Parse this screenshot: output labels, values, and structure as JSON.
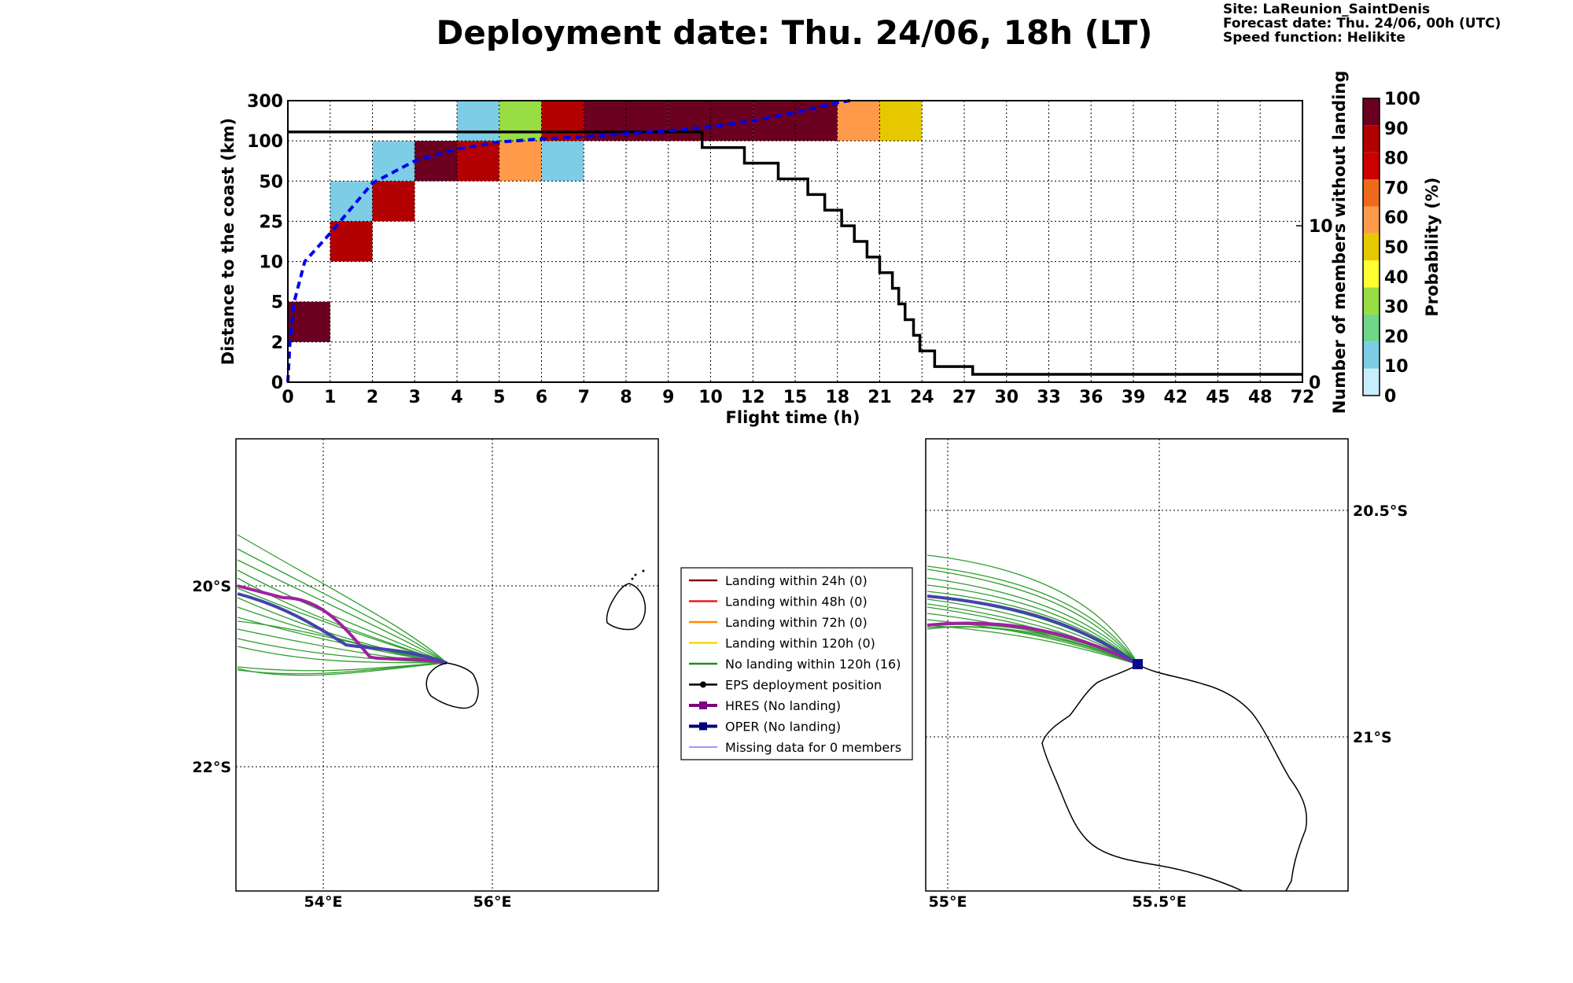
{
  "title": "Deployment date: Thu. 24/06, 18h (LT)",
  "info": {
    "site": "Site: LaReunion_SaintDenis",
    "forecast": "Forecast date: Thu. 24/06, 00h (UTC)",
    "speed": "Speed function: Helikite"
  },
  "chart_data": [
    {
      "type": "heatmap",
      "name": "distance-probability",
      "xlabel": "Flight time (h)",
      "ylabel": "Distance to the coast (km)",
      "y2label": "Number of members without landing",
      "x_ticks": [
        "0",
        "1",
        "2",
        "3",
        "4",
        "5",
        "6",
        "7",
        "8",
        "9",
        "10",
        "12",
        "15",
        "18",
        "21",
        "24",
        "27",
        "30",
        "33",
        "36",
        "39",
        "42",
        "45",
        "48",
        "72"
      ],
      "y_ticks": [
        "0",
        "2",
        "5",
        "10",
        "25",
        "50",
        "100",
        "300"
      ],
      "y2_ticks": [
        {
          "label": "0",
          "value": 0
        },
        {
          "label": "10",
          "value": 10
        }
      ],
      "y2_max": 18,
      "colorbar": {
        "label": "Probability (%)",
        "ticks": [
          "0",
          "10",
          "20",
          "30",
          "40",
          "50",
          "60",
          "70",
          "80",
          "90",
          "100"
        ],
        "colors": [
          "#c8eefc",
          "#7ecde6",
          "#6fd68a",
          "#99dd44",
          "#ffff33",
          "#e6c800",
          "#ff9a4a",
          "#ee6a1a",
          "#cc0000",
          "#b30000",
          "#6b0020"
        ]
      },
      "cells": [
        {
          "t": 0,
          "d": 1,
          "color": "#6b0020"
        },
        {
          "t": 1,
          "d": 3,
          "color": "#b30000"
        },
        {
          "t": 1,
          "d": 4,
          "color": "#7ecde6"
        },
        {
          "t": 2,
          "d": 4,
          "color": "#b30000"
        },
        {
          "t": 2,
          "d": 5,
          "color": "#7ecde6"
        },
        {
          "t": 3,
          "d": 5,
          "color": "#6b0020"
        },
        {
          "t": 4,
          "d": 5,
          "color": "#b30000"
        },
        {
          "t": 4,
          "d": 6,
          "color": "#7ecde6"
        },
        {
          "t": 5,
          "d": 5,
          "color": "#ff9a4a"
        },
        {
          "t": 5,
          "d": 6,
          "color": "#99dd44"
        },
        {
          "t": 6,
          "d": 5,
          "color": "#7ecde6"
        },
        {
          "t": 6,
          "d": 6,
          "color": "#b30000"
        },
        {
          "t": 7,
          "d": 6,
          "color": "#6b0020"
        },
        {
          "t": 8,
          "d": 6,
          "color": "#6b0020"
        },
        {
          "t": 9,
          "d": 6,
          "color": "#6b0020"
        },
        {
          "t": 10,
          "d": 6,
          "color": "#6b0020"
        },
        {
          "t": 11,
          "d": 6,
          "color": "#6b0020"
        },
        {
          "t": 12,
          "d": 6,
          "color": "#6b0020"
        },
        {
          "t": 13,
          "d": 6,
          "color": "#ff9a4a"
        },
        {
          "t": 14,
          "d": 6,
          "color": "#e6c800"
        }
      ],
      "members_without_landing": {
        "color": "#000000",
        "steps": [
          [
            0,
            16
          ],
          [
            9.8,
            15
          ],
          [
            10.8,
            14
          ],
          [
            11.6,
            13
          ],
          [
            12.3,
            12
          ],
          [
            12.7,
            11
          ],
          [
            13.1,
            10
          ],
          [
            13.4,
            9
          ],
          [
            13.7,
            8
          ],
          [
            14.0,
            7
          ],
          [
            14.3,
            6
          ],
          [
            14.45,
            5
          ],
          [
            14.6,
            4
          ],
          [
            14.8,
            3
          ],
          [
            14.95,
            2
          ],
          [
            15.3,
            1
          ],
          [
            16.2,
            0.5
          ],
          [
            17.4,
            0.5
          ],
          [
            24,
            0.5
          ]
        ]
      },
      "median_distance": {
        "color": "#0000ee",
        "points": [
          [
            0,
            0
          ],
          [
            0.05,
            1
          ],
          [
            0.15,
            2
          ],
          [
            0.4,
            3
          ],
          [
            1,
            3.7
          ],
          [
            2,
            4.95
          ],
          [
            3,
            5.5
          ],
          [
            4,
            5.8
          ],
          [
            5,
            5.97
          ],
          [
            6,
            6.05
          ],
          [
            7,
            6.1
          ],
          [
            8,
            6.18
          ],
          [
            9,
            6.25
          ],
          [
            10,
            6.35
          ],
          [
            11,
            6.5
          ],
          [
            12,
            6.7
          ],
          [
            13,
            6.95
          ],
          [
            13.3,
            7
          ]
        ]
      }
    },
    {
      "type": "map",
      "name": "trajectories-regional",
      "lon_ticks": [
        "54°E",
        "56°E"
      ],
      "lat_ticks": [
        "20°S",
        "22°S"
      ]
    },
    {
      "type": "map",
      "name": "trajectories-zoom",
      "lon_ticks": [
        "55°E",
        "55.5°E"
      ],
      "lat_ticks": [
        "20.5°S",
        "21°S"
      ]
    }
  ],
  "legend": [
    {
      "label": "Landing within 24h (0)",
      "color": "#7f1010",
      "style": "line"
    },
    {
      "label": "Landing within 48h (0)",
      "color": "#e81d1d",
      "style": "line"
    },
    {
      "label": "Landing within 72h (0)",
      "color": "#ff8c00",
      "style": "line"
    },
    {
      "label": "Landing within 120h (0)",
      "color": "#ffd700",
      "style": "line"
    },
    {
      "label": "No landing within 120h (16)",
      "color": "#228b22",
      "style": "line"
    },
    {
      "label": "EPS deployment position",
      "color": "#000000",
      "style": "dot"
    },
    {
      "label": "HRES (No landing)",
      "color": "#800080",
      "style": "square"
    },
    {
      "label": "OPER (No landing)",
      "color": "#000080",
      "style": "square"
    },
    {
      "label": "Missing data for 0 members",
      "color": "#3333ff",
      "style": "thin"
    }
  ]
}
